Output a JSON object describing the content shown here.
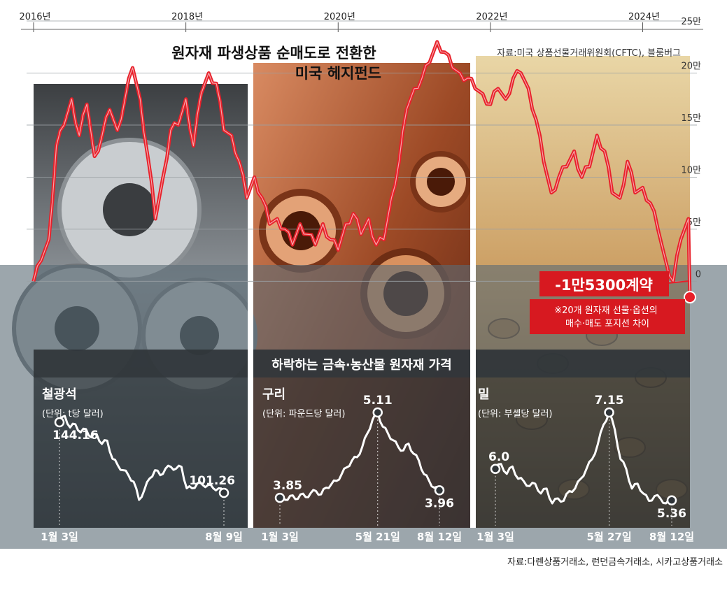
{
  "colors": {
    "main_line": "#e8202a",
    "small_line": "#ffffff",
    "band": "#5a6a75",
    "callout_bg": "#d71920",
    "subtitle_bar": "#2f3438",
    "steel_bg": "#9ea4a8",
    "copper_bg": "#a8532c",
    "wheat_bg": "#c9a36a"
  },
  "chart_data": [
    {
      "type": "line",
      "title": "원자재 파생상품 순매도로 전환한\n미국 헤지펀드",
      "source": "자료:미국 상품선물거래위원회(CFTC), 블룸버그",
      "x_tick_labels": [
        "2016년",
        "2018년",
        "2020년",
        "2022년",
        "2024년"
      ],
      "x_ticks": [
        2016.0,
        2018.0,
        2020.0,
        2022.0,
        2024.0
      ],
      "xlim": [
        2016.0,
        2024.62
      ],
      "y_tick_labels": [
        "0",
        "5만",
        "10만",
        "15만",
        "20만",
        "25만"
      ],
      "y_ticks": [
        0,
        50000,
        100000,
        150000,
        200000,
        250000
      ],
      "ylim": [
        -30000,
        250000
      ],
      "grid": true,
      "annotation": {
        "value_label": "-1만5300계약",
        "note": "※20개 원자재 선물·옵션의\n매수·매도 포지션 차이"
      },
      "series": [
        {
          "x": [
            2016.0,
            2016.1,
            2016.2,
            2016.3,
            2016.4,
            2016.5,
            2016.6,
            2016.7,
            2016.8,
            2016.9,
            2017.0,
            2017.1,
            2017.2,
            2017.3,
            2017.4,
            2017.5,
            2017.6,
            2017.7,
            2017.8,
            2017.9,
            2018.0,
            2018.1,
            2018.2,
            2018.3,
            2018.4,
            2018.5,
            2018.6,
            2018.7,
            2018.8,
            2018.9,
            2019.0,
            2019.1,
            2019.2,
            2019.3,
            2019.4,
            2019.5,
            2019.6,
            2019.7,
            2019.8,
            2019.9,
            2020.0,
            2020.1,
            2020.2,
            2020.3,
            2020.4,
            2020.5,
            2020.6,
            2020.7,
            2020.8,
            2020.9,
            2021.0,
            2021.1,
            2021.2,
            2021.3,
            2021.4,
            2021.5,
            2021.6,
            2021.7,
            2021.8,
            2021.9,
            2022.0,
            2022.1,
            2022.2,
            2022.3,
            2022.4,
            2022.5,
            2022.6,
            2022.7,
            2022.8,
            2022.9,
            2023.0,
            2023.1,
            2023.2,
            2023.3,
            2023.4,
            2023.5,
            2023.6,
            2023.7,
            2023.8,
            2023.9,
            2024.0,
            2024.1,
            2024.2,
            2024.3,
            2024.4,
            2024.5,
            2024.6,
            2024.62
          ],
          "values": [
            0,
            20000,
            40000,
            130000,
            150000,
            175000,
            140000,
            170000,
            120000,
            140000,
            165000,
            145000,
            175000,
            205000,
            175000,
            120000,
            60000,
            100000,
            145000,
            150000,
            175000,
            130000,
            180000,
            200000,
            190000,
            145000,
            140000,
            115000,
            80000,
            100000,
            80000,
            55000,
            60000,
            50000,
            35000,
            55000,
            45000,
            35000,
            55000,
            40000,
            30000,
            55000,
            65000,
            45000,
            60000,
            35000,
            40000,
            80000,
            115000,
            165000,
            185000,
            195000,
            210000,
            230000,
            220000,
            205000,
            200000,
            195000,
            185000,
            180000,
            170000,
            185000,
            175000,
            195000,
            200000,
            185000,
            155000,
            115000,
            85000,
            100000,
            110000,
            125000,
            100000,
            110000,
            140000,
            125000,
            85000,
            80000,
            115000,
            85000,
            90000,
            75000,
            50000,
            20000,
            0,
            40000,
            60000,
            -15300
          ]
        }
      ]
    },
    {
      "type": "line",
      "title": "하락하는 금속·농산물 원자재 가격",
      "source": "자료:다롄상품거래소, 런던금속거래소, 시카고상품거래소",
      "panels": [
        {
          "name": "철광석",
          "unit": "(단위: t당 달러)",
          "x_labels": [
            "1월 3일",
            "8월 9일"
          ],
          "start_label": "144.16",
          "end_label": "101.26",
          "values": [
            144.16,
            148,
            141,
            143,
            138,
            140,
            135,
            137,
            131,
            133,
            122,
            118,
            115,
            112,
            108,
            97,
            103,
            110,
            115,
            112,
            116,
            117,
            116,
            117,
            104,
            104,
            107,
            106,
            106,
            104,
            104,
            101.26
          ]
        },
        {
          "name": "구리",
          "unit": "(단위: 파운드당 달러)",
          "x_labels": [
            "1월 3일",
            "5월 21일",
            "8월 12일"
          ],
          "start_label": "3.85",
          "peak_label": "5.11",
          "end_label": "3.96",
          "values": [
            3.85,
            3.82,
            3.88,
            3.83,
            3.9,
            3.86,
            3.92,
            3.95,
            3.9,
            4.0,
            4.05,
            4.1,
            4.2,
            4.3,
            4.4,
            4.45,
            4.6,
            4.8,
            5.0,
            5.11,
            4.9,
            4.8,
            4.7,
            4.6,
            4.55,
            4.65,
            4.5,
            4.4,
            4.2,
            4.1,
            4.0,
            3.96
          ]
        },
        {
          "name": "밀",
          "unit": "(단위: 부셸당 달러)",
          "x_labels": [
            "1월 3일",
            "5월 27일",
            "8월 12일"
          ],
          "start_label": "6.0",
          "peak_label": "7.15",
          "end_label": "5.36",
          "values": [
            6.0,
            6.1,
            5.9,
            6.05,
            5.8,
            5.75,
            5.65,
            5.7,
            5.5,
            5.6,
            5.3,
            5.4,
            5.35,
            5.55,
            5.6,
            5.8,
            6.0,
            6.2,
            6.5,
            6.9,
            7.15,
            6.8,
            6.2,
            6.0,
            5.6,
            5.7,
            5.5,
            5.35,
            5.45,
            5.4,
            5.3,
            5.36
          ]
        }
      ]
    }
  ]
}
